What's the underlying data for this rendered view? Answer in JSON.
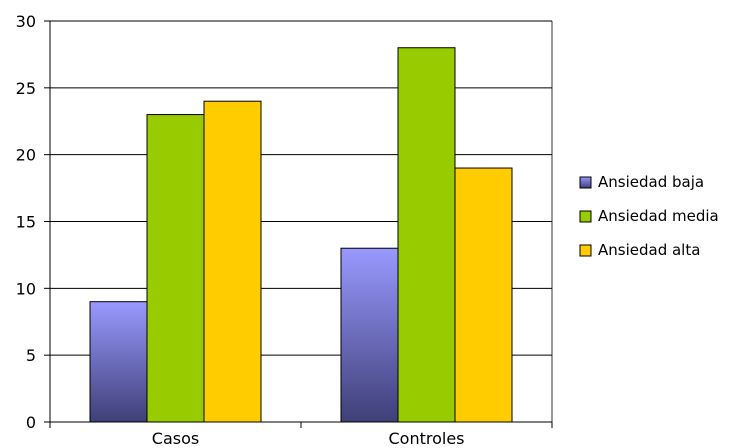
{
  "chart_data": {
    "type": "bar",
    "categories": [
      "Casos",
      "Controles"
    ],
    "series": [
      {
        "name": "Ansiedad baja",
        "values": [
          9,
          13
        ],
        "color": "#9999ff",
        "color_dark": "#3f3f78"
      },
      {
        "name": "Ansiedad media",
        "values": [
          23,
          28
        ],
        "color": "#99cc00"
      },
      {
        "name": "Ansiedad alta",
        "values": [
          24,
          19
        ],
        "color": "#ffcc00"
      }
    ],
    "ylim": [
      0,
      30
    ],
    "yticks": [
      0,
      5,
      10,
      15,
      20,
      25,
      30
    ],
    "grid": true,
    "legend_position": "right"
  }
}
